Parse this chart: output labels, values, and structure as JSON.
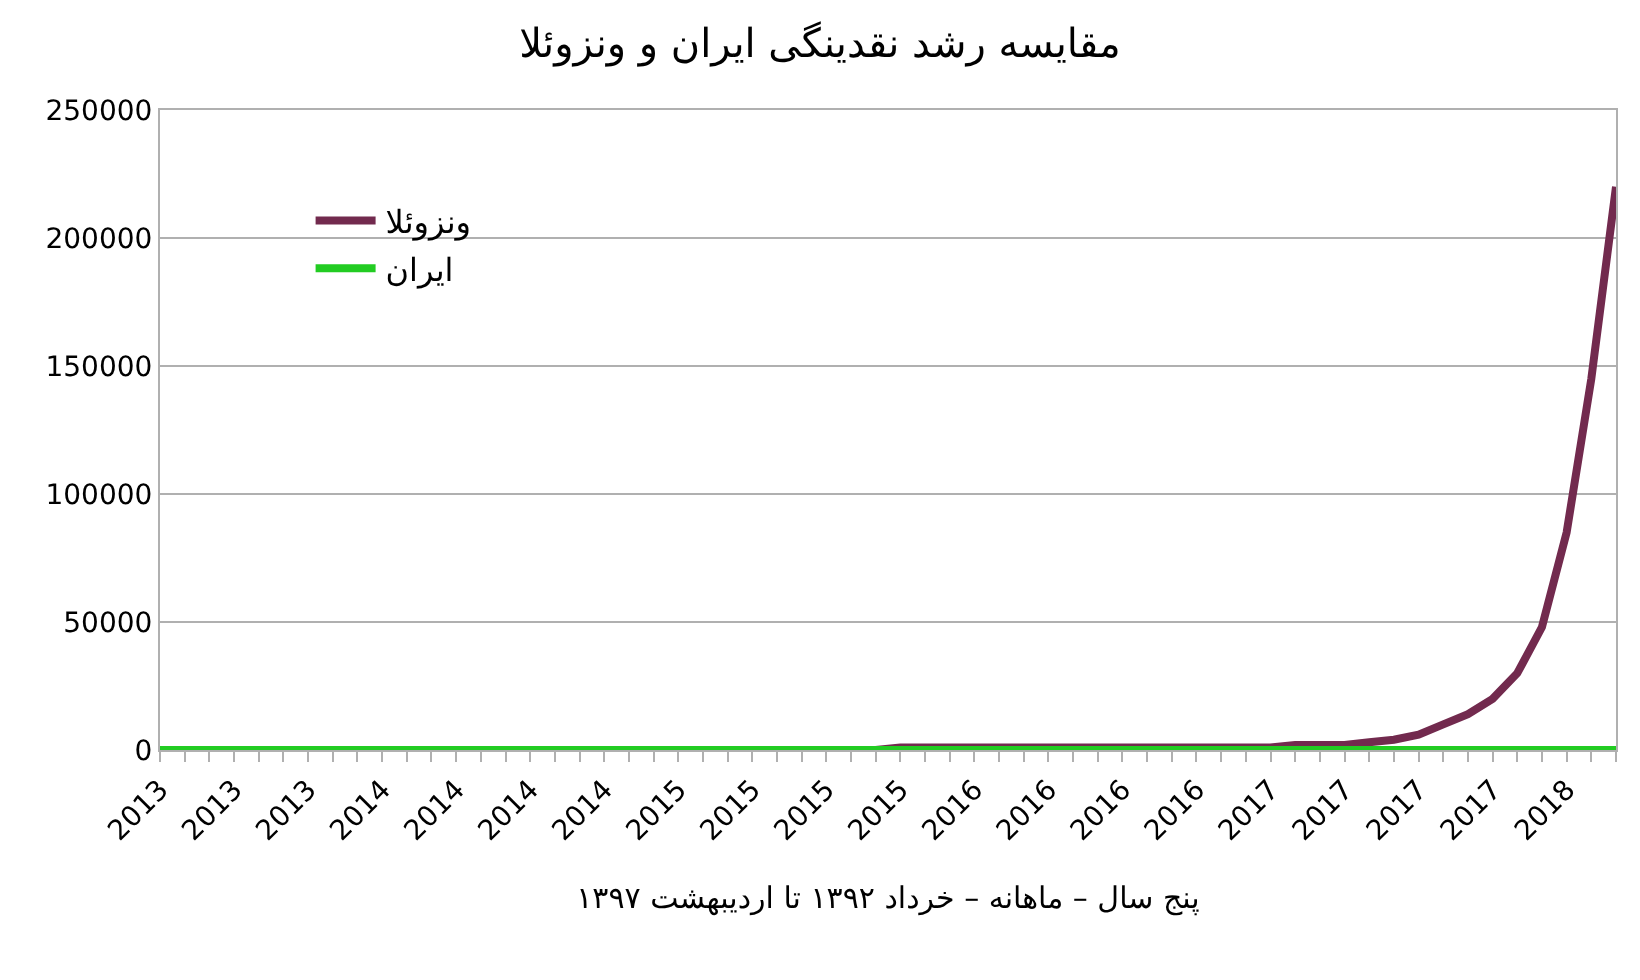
{
  "chart_data": {
    "type": "line",
    "title": "مقایسه رشد نقدینگی ایران و ونزوئلا",
    "xlabel": "پنج سال – ماهانه – خرداد ۱۳۹۲ تا اردیبهشت ۱۳۹۷",
    "categories": [
      "2013",
      null,
      null,
      "2013",
      null,
      null,
      "2013",
      null,
      null,
      "2014",
      null,
      null,
      "2014",
      null,
      null,
      "2014",
      null,
      null,
      "2014",
      null,
      null,
      "2015",
      null,
      null,
      "2015",
      null,
      null,
      "2015",
      null,
      null,
      "2015",
      null,
      null,
      "2016",
      null,
      null,
      "2016",
      null,
      null,
      "2016",
      null,
      null,
      "2016",
      null,
      null,
      "2017",
      null,
      null,
      "2017",
      null,
      null,
      "2017",
      null,
      null,
      "2017",
      null,
      null,
      "2018",
      null,
      null
    ],
    "series": [
      {
        "name": "ونزوئلا",
        "color": "#722a4e",
        "values": [
          0,
          0,
          0,
          0,
          0,
          0,
          0,
          0,
          0,
          0,
          0,
          0,
          0,
          0,
          0,
          0,
          0,
          0,
          0,
          0,
          0,
          0,
          0,
          0,
          0,
          0,
          0,
          0,
          0,
          0,
          1000,
          1000,
          1000,
          1000,
          1000,
          1000,
          1000,
          1000,
          1000,
          1000,
          1000,
          1000,
          1000,
          1000,
          1000,
          1000,
          2000,
          2000,
          2000,
          3000,
          4000,
          6000,
          10000,
          14000,
          20000,
          30000,
          48000,
          85000,
          145000,
          220000
        ]
      },
      {
        "name": "ایران",
        "color": "#22cc22",
        "values": [
          0,
          0,
          0,
          0,
          0,
          0,
          0,
          0,
          0,
          0,
          0,
          0,
          0,
          0,
          0,
          0,
          0,
          0,
          0,
          0,
          0,
          0,
          0,
          0,
          0,
          0,
          0,
          0,
          0,
          0,
          0,
          0,
          0,
          0,
          0,
          0,
          0,
          0,
          0,
          0,
          0,
          0,
          0,
          0,
          0,
          0,
          0,
          0,
          0,
          0,
          0,
          0,
          0,
          0,
          0,
          0,
          0,
          0,
          0,
          0
        ]
      }
    ],
    "ylim": [
      0,
      250000
    ],
    "yticks": [
      0,
      50000,
      100000,
      150000,
      200000,
      250000
    ],
    "grid": "y",
    "legend": "top left",
    "marker": "none",
    "line_style": "solid"
  }
}
